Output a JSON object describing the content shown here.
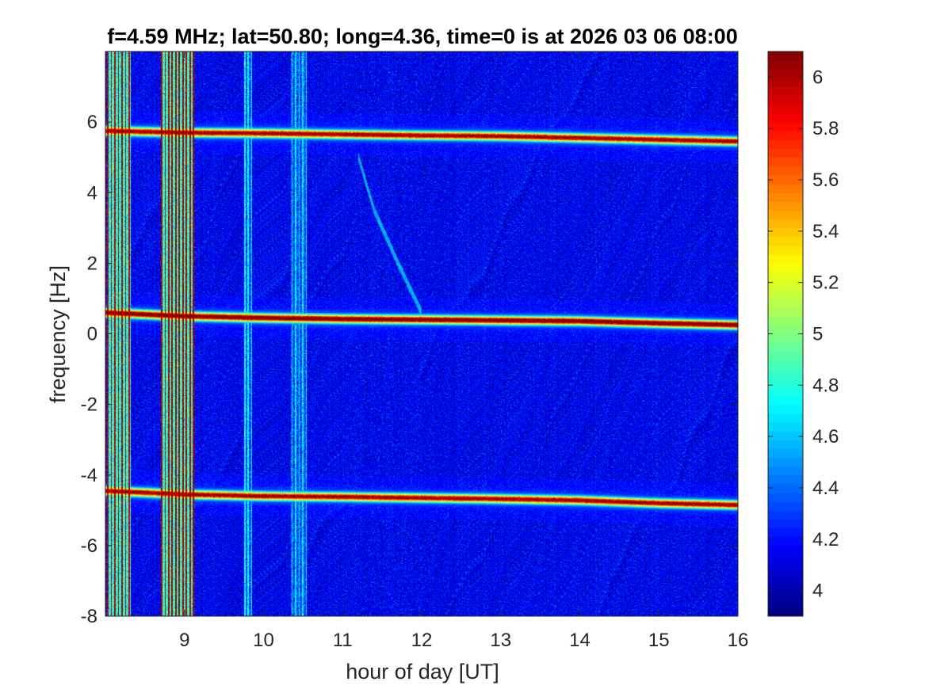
{
  "chart_data": {
    "type": "heatmap",
    "title": "f=4.59 MHz;  lat=50.80; long=4.36, time=0 is at 2026 03 06 08:00",
    "xlabel": "hour of day [UT]",
    "ylabel": "frequency [Hz]",
    "xlim": [
      8.0,
      16.0
    ],
    "ylim": [
      -8,
      8
    ],
    "x_ticks": [
      9,
      10,
      11,
      12,
      13,
      14,
      15,
      16
    ],
    "x_tick_labels": [
      "9",
      "10",
      "11",
      "12",
      "13",
      "14",
      "15",
      "16"
    ],
    "y_ticks": [
      -8,
      -6,
      -4,
      -2,
      0,
      2,
      4,
      6
    ],
    "y_tick_labels": [
      "-8",
      "-6",
      "-4",
      "-2",
      "0",
      "2",
      "4",
      "6"
    ],
    "colormap": "jet",
    "clim": [
      3.9,
      6.1
    ],
    "colorbar_ticks": [
      4,
      4.2,
      4.4,
      4.6,
      4.8,
      5,
      5.2,
      5.4,
      5.6,
      5.8,
      6
    ],
    "colorbar_tick_labels": [
      "4",
      "4.2",
      "4.4",
      "4.6",
      "4.8",
      "5",
      "5.2",
      "5.4",
      "5.6",
      "5.8",
      "6"
    ],
    "background_level": 4.15,
    "horizontal_traces": [
      {
        "x": [
          8.0,
          9.0,
          10.0,
          11.0,
          12.0,
          13.0,
          14.0,
          15.0,
          16.0
        ],
        "y": [
          5.75,
          5.7,
          5.68,
          5.65,
          5.62,
          5.6,
          5.55,
          5.5,
          5.45
        ],
        "level": 5.95
      },
      {
        "x": [
          8.0,
          9.0,
          10.0,
          11.0,
          12.0,
          13.0,
          14.0,
          15.0,
          16.0
        ],
        "y": [
          0.6,
          0.5,
          0.45,
          0.42,
          0.4,
          0.38,
          0.36,
          0.3,
          0.25
        ],
        "level": 6.1
      },
      {
        "x": [
          8.0,
          9.0,
          10.0,
          11.0,
          12.0,
          13.0,
          14.0,
          15.0,
          16.0
        ],
        "y": [
          -4.45,
          -4.55,
          -4.6,
          -4.62,
          -4.65,
          -4.68,
          -4.72,
          -4.8,
          -4.85
        ],
        "level": 5.95
      }
    ],
    "vertical_bands": [
      {
        "x_start": 8.02,
        "x_end": 8.32,
        "level": 6.0
      },
      {
        "x_start": 8.7,
        "x_end": 9.12,
        "level": 6.05
      },
      {
        "x_start": 9.75,
        "x_end": 9.85,
        "level": 4.75
      },
      {
        "x_start": 10.35,
        "x_end": 10.55,
        "level": 4.7
      }
    ],
    "diagonal_trace": {
      "x": [
        11.2,
        11.4,
        11.7,
        12.0
      ],
      "y": [
        5.0,
        3.5,
        2.0,
        0.6
      ],
      "level": 4.55
    }
  }
}
